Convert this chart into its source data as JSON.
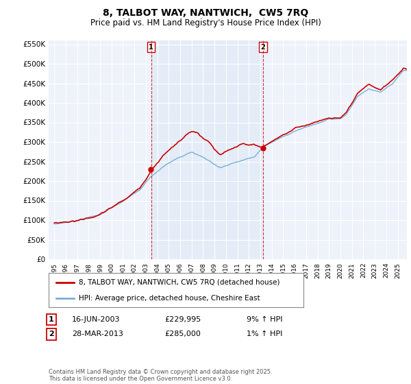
{
  "title": "8, TALBOT WAY, NANTWICH,  CW5 7RQ",
  "subtitle": "Price paid vs. HM Land Registry's House Price Index (HPI)",
  "ylim": [
    0,
    560000
  ],
  "yticks": [
    0,
    50000,
    100000,
    150000,
    200000,
    250000,
    300000,
    350000,
    400000,
    450000,
    500000,
    550000
  ],
  "sale1_year": 2003.46,
  "sale1_price": 229995,
  "sale2_year": 2013.24,
  "sale2_price": 285000,
  "legend_line1": "8, TALBOT WAY, NANTWICH, CW5 7RQ (detached house)",
  "legend_line2": "HPI: Average price, detached house, Cheshire East",
  "table_row1": [
    "1",
    "16-JUN-2003",
    "£229,995",
    "9% ↑ HPI"
  ],
  "table_row2": [
    "2",
    "28-MAR-2013",
    "£285,000",
    "1% ↑ HPI"
  ],
  "footer": "Contains HM Land Registry data © Crown copyright and database right 2025.\nThis data is licensed under the Open Government Licence v3.0.",
  "line_color_red": "#cc0000",
  "line_color_blue": "#7bafd4",
  "fill_color_blue": "#dce8f5",
  "background_color": "#eef2fb",
  "grid_color": "#ffffff",
  "marker_color_red": "#cc0000"
}
